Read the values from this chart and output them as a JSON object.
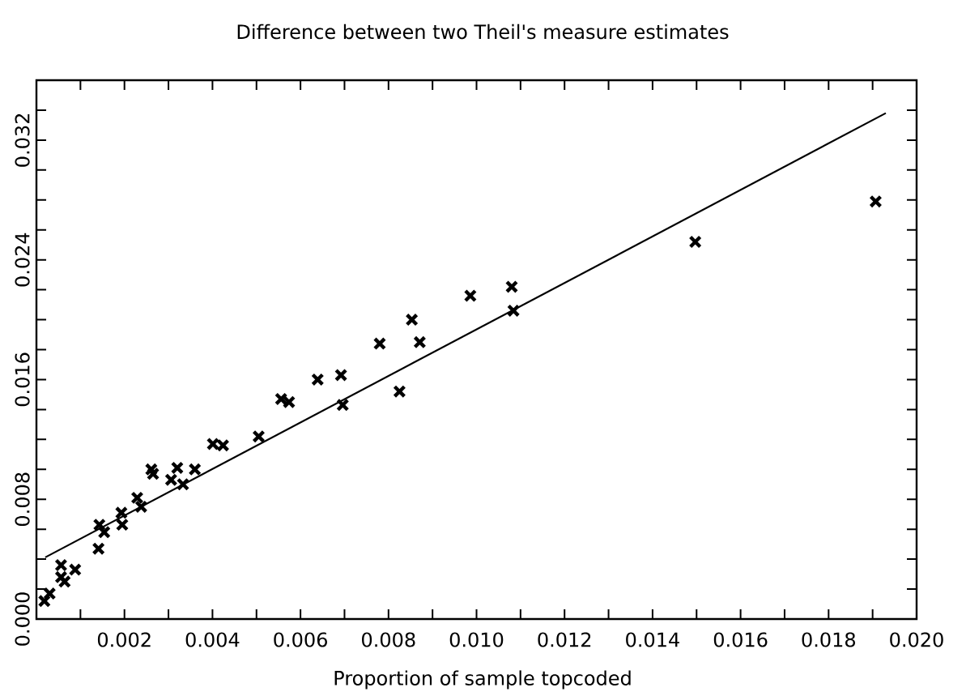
{
  "chart_data": {
    "type": "scatter",
    "title": "Difference between two Theil's measure estimates",
    "xlabel": "Proportion of sample topcoded",
    "xlim": [
      0,
      0.02
    ],
    "ylim": [
      0,
      0.036
    ],
    "xticks": [
      {
        "value": 0.001,
        "label": null
      },
      {
        "value": 0.002,
        "label": "0.002"
      },
      {
        "value": 0.003,
        "label": null
      },
      {
        "value": 0.004,
        "label": "0.004"
      },
      {
        "value": 0.005,
        "label": null
      },
      {
        "value": 0.006,
        "label": "0.006"
      },
      {
        "value": 0.007,
        "label": null
      },
      {
        "value": 0.008,
        "label": "0.008"
      },
      {
        "value": 0.009,
        "label": null
      },
      {
        "value": 0.01,
        "label": "0.010"
      },
      {
        "value": 0.011,
        "label": null
      },
      {
        "value": 0.012,
        "label": "0.012"
      },
      {
        "value": 0.013,
        "label": null
      },
      {
        "value": 0.014,
        "label": "0.014"
      },
      {
        "value": 0.015,
        "label": null
      },
      {
        "value": 0.016,
        "label": "0.016"
      },
      {
        "value": 0.017,
        "label": null
      },
      {
        "value": 0.018,
        "label": "0.018"
      },
      {
        "value": 0.019,
        "label": null
      },
      {
        "value": 0.02,
        "label": "0.020"
      }
    ],
    "yticks": [
      {
        "value": 0,
        "label": "0.000"
      },
      {
        "value": 0.002,
        "label": null
      },
      {
        "value": 0.004,
        "label": null
      },
      {
        "value": 0.006,
        "label": null
      },
      {
        "value": 0.008,
        "label": "0.008"
      },
      {
        "value": 0.01,
        "label": null
      },
      {
        "value": 0.012,
        "label": null
      },
      {
        "value": 0.014,
        "label": null
      },
      {
        "value": 0.016,
        "label": "0.016"
      },
      {
        "value": 0.018,
        "label": null
      },
      {
        "value": 0.02,
        "label": null
      },
      {
        "value": 0.022,
        "label": null
      },
      {
        "value": 0.024,
        "label": "0.024"
      },
      {
        "value": 0.026,
        "label": null
      },
      {
        "value": 0.028,
        "label": null
      },
      {
        "value": 0.03,
        "label": null
      },
      {
        "value": 0.032,
        "label": "0.032"
      },
      {
        "value": 0.034,
        "label": null
      }
    ],
    "grid": false,
    "series": [
      {
        "marker": "cross",
        "color": "#000000",
        "x": [
          0.00018,
          0.0003,
          0.00056,
          0.00056,
          0.00064,
          0.00088,
          0.00141,
          0.00143,
          0.00154,
          0.00193,
          0.00195,
          0.00229,
          0.00238,
          0.00261,
          0.00265,
          0.00306,
          0.0032,
          0.00333,
          0.0036,
          0.00401,
          0.00424,
          0.00505,
          0.00556,
          0.00574,
          0.00639,
          0.00692,
          0.00696,
          0.0078,
          0.00825,
          0.00853,
          0.00871,
          0.00986,
          0.0108,
          0.01084,
          0.01497,
          0.01907
        ],
        "values": [
          0.0012,
          0.0017,
          0.0028,
          0.0036,
          0.0025,
          0.0033,
          0.0047,
          0.0063,
          0.0058,
          0.0071,
          0.0063,
          0.0081,
          0.0075,
          0.01,
          0.0097,
          0.0093,
          0.0101,
          0.009,
          0.01,
          0.0117,
          0.0116,
          0.0122,
          0.0147,
          0.0145,
          0.016,
          0.0163,
          0.0143,
          0.0184,
          0.0152,
          0.02,
          0.0185,
          0.0216,
          0.0222,
          0.0206,
          0.0252,
          0.0279
        ]
      },
      {
        "type": "line",
        "marker": "none",
        "line_style": "solid",
        "color": "#000000",
        "x": [
          0.0002,
          0.0193
        ],
        "values": [
          0.00412,
          0.0338
        ]
      }
    ]
  }
}
